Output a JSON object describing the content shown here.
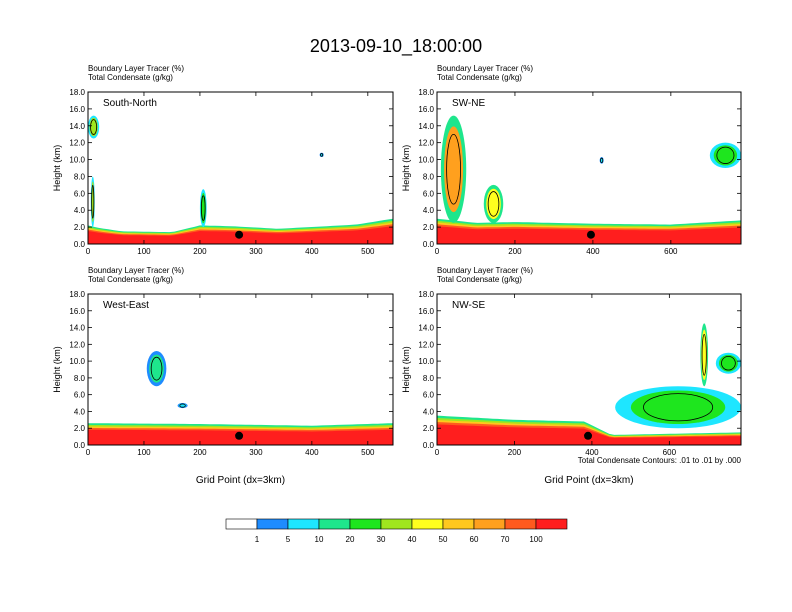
{
  "figure": {
    "title": "2013-09-10_18:00:00",
    "footnote": "Total Condensate Contours: .01 to .01 by .000"
  },
  "colorbar": {
    "colors": [
      "#ffffff",
      "#1e8cff",
      "#1ee6ff",
      "#1ee68c",
      "#1ee61e",
      "#a0e61e",
      "#ffff1e",
      "#ffc81e",
      "#ffa01e",
      "#ff5a1e",
      "#ff1e1e"
    ],
    "labels": [
      "1",
      "5",
      "10",
      "20",
      "30",
      "40",
      "50",
      "60",
      "70",
      "100"
    ]
  },
  "chart_data": [
    {
      "type": "heatmap",
      "subtitle_lines": [
        "Boundary Layer Tracer   (%)",
        "Total Condensate   (g/kg)"
      ],
      "panel_label": "South-North",
      "xlabel": "",
      "ylabel": "Height (km)",
      "xlim": [
        0,
        545
      ],
      "ylim": [
        0,
        18
      ],
      "xticks": [
        0,
        100,
        200,
        300,
        400,
        500
      ],
      "yticks": [
        "0.0",
        "2.0",
        "4.0",
        "6.0",
        "8.0",
        "10.0",
        "12.0",
        "14.0",
        "16.0",
        "18.0"
      ],
      "marker": [
        270,
        1.1
      ],
      "boundary_layer_top_km": [
        [
          0,
          2.2
        ],
        [
          20,
          1.9
        ],
        [
          60,
          1.5
        ],
        [
          150,
          1.4
        ],
        [
          200,
          2.2
        ],
        [
          260,
          2.1
        ],
        [
          340,
          1.8
        ],
        [
          480,
          2.3
        ],
        [
          545,
          3.0
        ]
      ],
      "clouds": [
        {
          "x": [
            0,
            20
          ],
          "y": [
            12.5,
            15.2
          ],
          "level": 30
        },
        {
          "x": [
            5,
            12
          ],
          "y": [
            2,
            8
          ],
          "level": 30
        },
        {
          "x": [
            200,
            212
          ],
          "y": [
            2,
            6.5
          ],
          "level": 20
        },
        {
          "x": [
            415,
            420
          ],
          "y": [
            10.3,
            10.8
          ],
          "level": 5
        }
      ]
    },
    {
      "type": "heatmap",
      "subtitle_lines": [
        "Boundary Layer Tracer   (%)",
        "Total Condensate   (g/kg)"
      ],
      "panel_label": "SW-NE",
      "xlabel": "",
      "ylabel": "Height (km)",
      "xlim": [
        0,
        780
      ],
      "ylim": [
        0,
        18
      ],
      "xticks": [
        0,
        200,
        400,
        600
      ],
      "yticks": [
        "0.0",
        "2.0",
        "4.0",
        "6.0",
        "8.0",
        "10.0",
        "12.0",
        "14.0",
        "16.0",
        "18.0"
      ],
      "marker": [
        395,
        1.1
      ],
      "boundary_layer_top_km": [
        [
          0,
          3.0
        ],
        [
          100,
          2.5
        ],
        [
          200,
          2.6
        ],
        [
          400,
          2.4
        ],
        [
          600,
          2.3
        ],
        [
          780,
          2.8
        ]
      ],
      "clouds": [
        {
          "x": [
            10,
            75
          ],
          "y": [
            2.5,
            15.2
          ],
          "level": 60
        },
        {
          "x": [
            120,
            170
          ],
          "y": [
            2.5,
            7
          ],
          "level": 40
        },
        {
          "x": [
            700,
            780
          ],
          "y": [
            9,
            12
          ],
          "level": 20
        },
        {
          "x": [
            420,
            425
          ],
          "y": [
            9.5,
            10.3
          ],
          "level": 5
        }
      ]
    },
    {
      "type": "heatmap",
      "subtitle_lines": [
        "Boundary Layer Tracer   (%)",
        "Total Condensate   (g/kg)"
      ],
      "panel_label": "West-East",
      "xlabel": "Grid Point (dx=3km)",
      "ylabel": "Height (km)",
      "xlim": [
        0,
        545
      ],
      "ylim": [
        0,
        18
      ],
      "xticks": [
        0,
        100,
        200,
        300,
        400,
        500
      ],
      "yticks": [
        "0.0",
        "2.0",
        "4.0",
        "6.0",
        "8.0",
        "10.0",
        "12.0",
        "14.0",
        "16.0",
        "18.0"
      ],
      "marker": [
        270,
        1.1
      ],
      "boundary_layer_top_km": [
        [
          0,
          2.6
        ],
        [
          200,
          2.5
        ],
        [
          400,
          2.3
        ],
        [
          545,
          2.6
        ]
      ],
      "clouds": [
        {
          "x": [
            105,
            140
          ],
          "y": [
            7,
            11.2
          ],
          "level": 10
        },
        {
          "x": [
            160,
            178
          ],
          "y": [
            4.4,
            5
          ],
          "level": 5
        }
      ]
    },
    {
      "type": "heatmap",
      "subtitle_lines": [
        "Boundary Layer Tracer   (%)",
        "Total Condensate   (g/kg)"
      ],
      "panel_label": "NW-SE",
      "xlabel": "Grid Point (dx=3km)",
      "ylabel": "Height (km)",
      "xlim": [
        0,
        785
      ],
      "ylim": [
        0,
        18
      ],
      "xticks": [
        0,
        200,
        400,
        600
      ],
      "yticks": [
        "0.0",
        "2.0",
        "4.0",
        "6.0",
        "8.0",
        "10.0",
        "12.0",
        "14.0",
        "16.0",
        "18.0"
      ],
      "marker": [
        390,
        1.1
      ],
      "boundary_layer_top_km": [
        [
          0,
          3.5
        ],
        [
          200,
          3.0
        ],
        [
          380,
          2.8
        ],
        [
          450,
          1.2
        ],
        [
          785,
          1.5
        ]
      ],
      "clouds": [
        {
          "x": [
            460,
            785
          ],
          "y": [
            2,
            7
          ],
          "level": 20
        },
        {
          "x": [
            680,
            700
          ],
          "y": [
            7,
            14.5
          ],
          "level": 40
        },
        {
          "x": [
            720,
            785
          ],
          "y": [
            8.5,
            11
          ],
          "level": 20
        }
      ]
    }
  ]
}
